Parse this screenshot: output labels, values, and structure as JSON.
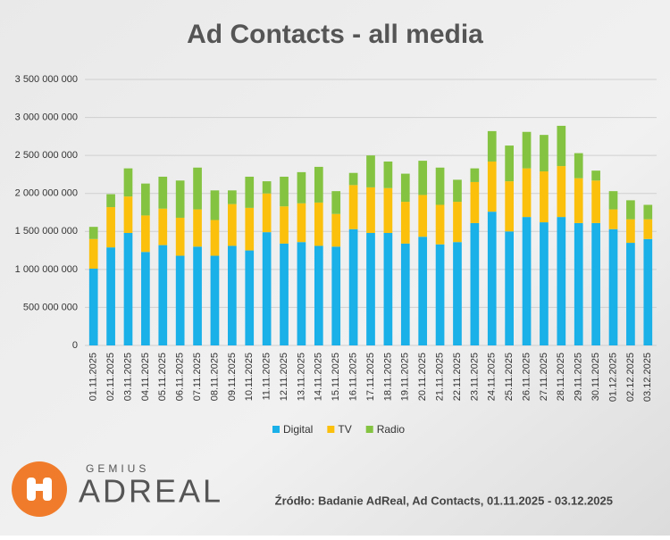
{
  "chart_data": {
    "type": "stacked_bar",
    "title": "Ad Contacts - all media",
    "categories": [
      "01.11.2025",
      "02.11.2025",
      "03.11.2025",
      "04.11.2025",
      "05.11.2025",
      "06.11.2025",
      "07.11.2025",
      "08.11.2025",
      "09.11.2025",
      "10.11.2025",
      "11.11.2025",
      "12.11.2025",
      "13.11.2025",
      "14.11.2025",
      "15.11.2025",
      "16.11.2025",
      "17.11.2025",
      "18.11.2025",
      "19.11.2025",
      "20.11.2025",
      "21.11.2025",
      "22.11.2025",
      "23.11.2025",
      "24.11.2025",
      "25.11.2025",
      "26.11.2025",
      "27.11.2025",
      "28.11.2025",
      "29.11.2025",
      "30.11.2025",
      "01.12.2025",
      "02.12.2025",
      "03.12.2025"
    ],
    "series": [
      {
        "name": "Digital",
        "color": "#1ab0e8",
        "values": [
          1010000000,
          1290000000,
          1480000000,
          1230000000,
          1320000000,
          1180000000,
          1300000000,
          1180000000,
          1310000000,
          1250000000,
          1490000000,
          1340000000,
          1360000000,
          1310000000,
          1300000000,
          1530000000,
          1480000000,
          1480000000,
          1340000000,
          1430000000,
          1330000000,
          1360000000,
          1610000000,
          1760000000,
          1500000000,
          1690000000,
          1620000000,
          1690000000,
          1610000000,
          1610000000,
          1530000000,
          1350000000,
          1400000000
        ]
      },
      {
        "name": "TV",
        "color": "#fbc00c",
        "values": [
          390000000,
          530000000,
          480000000,
          480000000,
          480000000,
          500000000,
          490000000,
          470000000,
          550000000,
          560000000,
          510000000,
          490000000,
          510000000,
          570000000,
          430000000,
          580000000,
          600000000,
          590000000,
          550000000,
          550000000,
          520000000,
          530000000,
          540000000,
          660000000,
          660000000,
          640000000,
          670000000,
          670000000,
          590000000,
          560000000,
          260000000,
          310000000,
          260000000
        ]
      },
      {
        "name": "Radio",
        "color": "#84c341",
        "values": [
          160000000,
          170000000,
          370000000,
          420000000,
          420000000,
          490000000,
          550000000,
          390000000,
          180000000,
          410000000,
          160000000,
          390000000,
          410000000,
          470000000,
          300000000,
          160000000,
          420000000,
          350000000,
          370000000,
          450000000,
          490000000,
          290000000,
          180000000,
          400000000,
          470000000,
          480000000,
          480000000,
          530000000,
          330000000,
          130000000,
          240000000,
          250000000,
          190000000
        ]
      }
    ],
    "ylim": [
      0,
      3500000000
    ],
    "yticks": [
      0,
      {
        "value": 500000000,
        "label": "500 000 000"
      },
      {
        "value": 1000000000,
        "label": "1 000 000 000"
      },
      {
        "value": 1500000000,
        "label": "1 500 000 000"
      },
      {
        "value": 2000000000,
        "label": "2 000 000 000"
      },
      {
        "value": 2500000000,
        "label": "2 500 000 000"
      },
      {
        "value": 3000000000,
        "label": "3 000 000 000"
      },
      {
        "value": 3500000000,
        "label": "3 500 000 000"
      }
    ],
    "grid": true,
    "legend": "bottom",
    "source": "Źródło: Badanie AdReal, Ad Contacts, 01.11.2025 - 03.12.2025"
  },
  "logo": {
    "small": "GEMIUS",
    "brand": "ADREAL"
  }
}
